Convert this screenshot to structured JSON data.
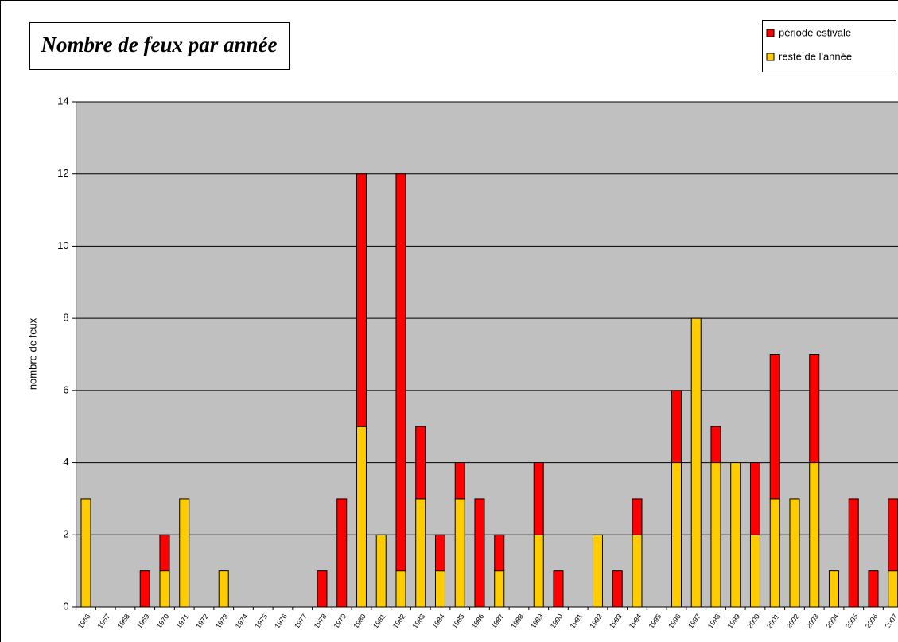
{
  "chart_data": {
    "type": "stacked_bar",
    "title": "Nombre de feux par année",
    "y_label": "nombre de feux",
    "categories": [
      "1966",
      "1967",
      "1968",
      "1969",
      "1970",
      "1971",
      "1972",
      "1973",
      "1974",
      "1975",
      "1976",
      "1977",
      "1978",
      "1979",
      "1980",
      "1981",
      "1982",
      "1983",
      "1984",
      "1985",
      "1986",
      "1987",
      "1988",
      "1989",
      "1990",
      "1991",
      "1992",
      "1993",
      "1994",
      "1995",
      "1996",
      "1997",
      "1998",
      "1999",
      "2000",
      "2001",
      "2002",
      "2003",
      "2004",
      "2005",
      "2006",
      "2007"
    ],
    "series": [
      {
        "name": "reste de l'année",
        "color": "#ffcc00",
        "values": [
          3,
          0,
          0,
          0,
          1,
          3,
          0,
          1,
          0,
          0,
          0,
          0,
          0,
          0,
          5,
          2,
          1,
          3,
          1,
          3,
          0,
          1,
          0,
          2,
          0,
          0,
          2,
          0,
          2,
          0,
          4,
          8,
          4,
          4,
          2,
          3,
          3,
          4,
          1,
          0,
          0,
          1
        ]
      },
      {
        "name": "période estivale",
        "color": "#ff0000",
        "values": [
          0,
          0,
          0,
          1,
          1,
          0,
          0,
          0,
          0,
          0,
          0,
          0,
          1,
          3,
          7,
          0,
          11,
          2,
          1,
          1,
          3,
          1,
          0,
          2,
          1,
          0,
          0,
          1,
          1,
          0,
          2,
          0,
          1,
          0,
          2,
          4,
          0,
          3,
          0,
          3,
          1,
          2
        ]
      }
    ],
    "ylim": [
      0,
      14
    ],
    "yticks": [
      0,
      2,
      4,
      6,
      8,
      10,
      12,
      14
    ],
    "grid": true,
    "legend": "top-right"
  }
}
